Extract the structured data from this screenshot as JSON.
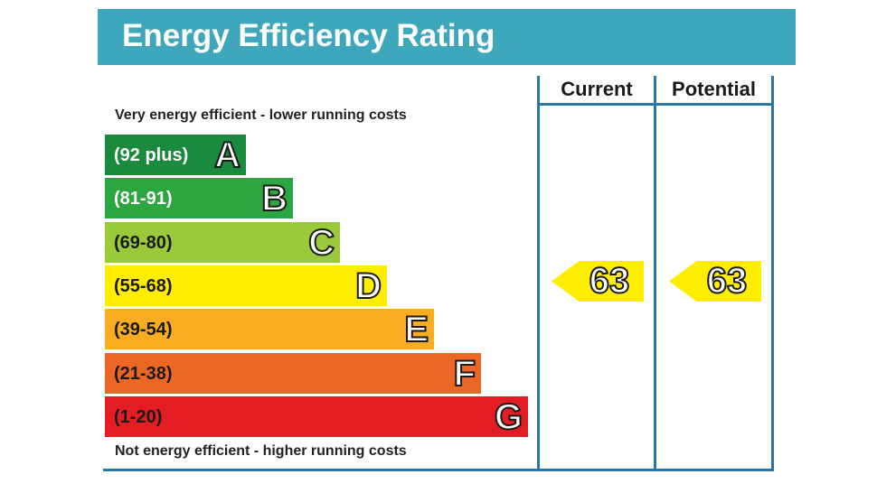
{
  "title": "Energy Efficiency Rating",
  "columns": {
    "current": "Current",
    "potential": "Potential"
  },
  "notes": {
    "top": "Very energy efficient - lower running costs",
    "bottom": "Not energy efficient - higher running costs"
  },
  "chart_data": {
    "type": "bar",
    "title": "Energy Efficiency Rating",
    "categories": [
      "A",
      "B",
      "C",
      "D",
      "E",
      "F",
      "G"
    ],
    "bands": [
      {
        "letter": "A",
        "range": "(92 plus)",
        "color": "#1a8a3c",
        "text_color": "#ffffff"
      },
      {
        "letter": "B",
        "range": "(81-91)",
        "color": "#2ca640",
        "text_color": "#ffffff"
      },
      {
        "letter": "C",
        "range": "(69-80)",
        "color": "#9bc93c",
        "text_color": "#1a1a1a"
      },
      {
        "letter": "D",
        "range": "(55-68)",
        "color": "#ffed00",
        "text_color": "#1a1a1a"
      },
      {
        "letter": "E",
        "range": "(39-54)",
        "color": "#f7ac22",
        "text_color": "#1a1a1a"
      },
      {
        "letter": "F",
        "range": "(21-38)",
        "color": "#ec6726",
        "text_color": "#1a1a1a"
      },
      {
        "letter": "G",
        "range": "(1-20)",
        "color": "#e31d23",
        "text_color": "#1a1a1a"
      }
    ],
    "current": {
      "value": 63,
      "band": "D"
    },
    "potential": {
      "value": 63,
      "band": "D"
    }
  }
}
